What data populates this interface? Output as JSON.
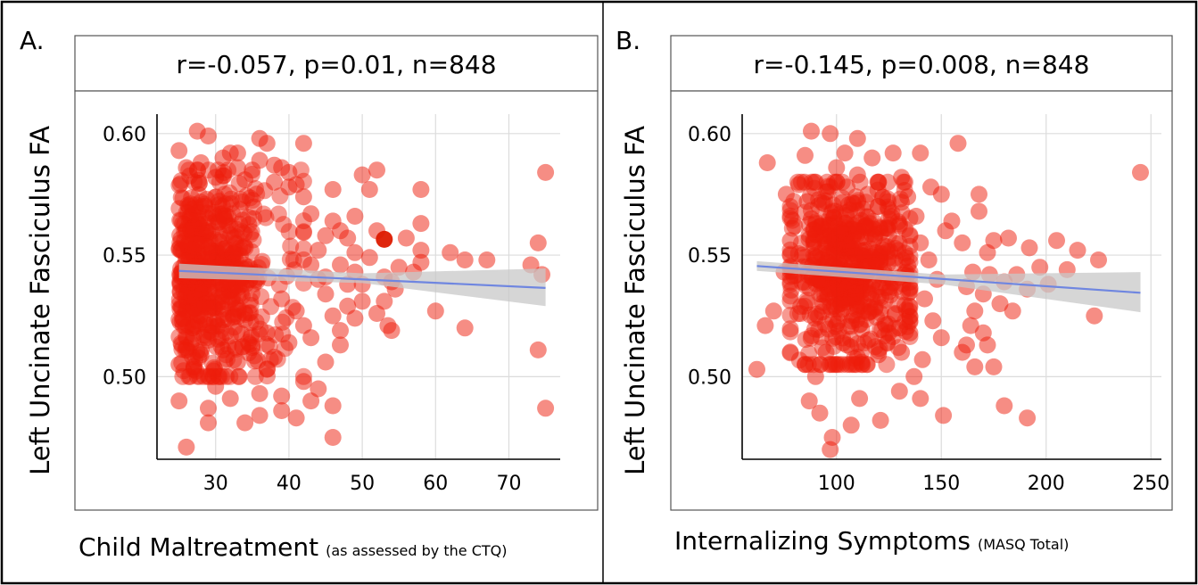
{
  "chart_data": [
    {
      "type": "scatter",
      "panel_label": "A.",
      "title": "r=-0.057, p=0.01, n=848",
      "xlabel": "Child Maltreatment",
      "xlabel_note": "(as assessed by the CTQ)",
      "ylabel": "Left Uncinate Fasciculus FA",
      "xlim": [
        22,
        77
      ],
      "ylim": [
        0.466,
        0.608
      ],
      "xticks": [
        30,
        40,
        50,
        60,
        70
      ],
      "xtick_labels": [
        "30",
        "40",
        "50",
        "60",
        "70"
      ],
      "yticks": [
        0.5,
        0.55,
        0.6
      ],
      "ytick_labels": [
        "0.50",
        "0.55",
        "0.60"
      ],
      "grid": true,
      "point_color": "#ee1c0a",
      "highlight_color": "#dd1a00",
      "fit_color": "#6f86e0",
      "band_color": "#c8c8c8",
      "fit": {
        "x": [
          25,
          75
        ],
        "y": [
          0.5435,
          0.5365
        ]
      },
      "band": {
        "x": [
          25,
          50,
          75
        ],
        "upper": [
          0.5465,
          0.5425,
          0.5445
        ],
        "lower": [
          0.5405,
          0.5385,
          0.529
        ]
      },
      "highlight_points": [
        [
          53,
          0.5565
        ]
      ],
      "points": [
        [
          27.5,
          0.601
        ],
        [
          29,
          0.599
        ],
        [
          25,
          0.593
        ],
        [
          32,
          0.592
        ],
        [
          33,
          0.592
        ],
        [
          36,
          0.598
        ],
        [
          37,
          0.596
        ],
        [
          42,
          0.596
        ],
        [
          35,
          0.585
        ],
        [
          39,
          0.586
        ],
        [
          46,
          0.577
        ],
        [
          50,
          0.583
        ],
        [
          52,
          0.585
        ],
        [
          51,
          0.577
        ],
        [
          58,
          0.577
        ],
        [
          75,
          0.584
        ],
        [
          47,
          0.56
        ],
        [
          48,
          0.557
        ],
        [
          49,
          0.566
        ],
        [
          52,
          0.56
        ],
        [
          56,
          0.557
        ],
        [
          58,
          0.563
        ],
        [
          58,
          0.552
        ],
        [
          62,
          0.551
        ],
        [
          64,
          0.548
        ],
        [
          67,
          0.548
        ],
        [
          73,
          0.546
        ],
        [
          74,
          0.555
        ],
        [
          74.5,
          0.542
        ],
        [
          58,
          0.547
        ],
        [
          55,
          0.545
        ],
        [
          57,
          0.543
        ],
        [
          53,
          0.541
        ],
        [
          54,
          0.539
        ],
        [
          54.5,
          0.536
        ],
        [
          53,
          0.531
        ],
        [
          52,
          0.526
        ],
        [
          53.5,
          0.521
        ],
        [
          54,
          0.519
        ],
        [
          60,
          0.527
        ],
        [
          64,
          0.52
        ],
        [
          74,
          0.511
        ],
        [
          75,
          0.487
        ],
        [
          46,
          0.475
        ],
        [
          41,
          0.483
        ],
        [
          43,
          0.49
        ],
        [
          39,
          0.486
        ],
        [
          36,
          0.484
        ],
        [
          34,
          0.481
        ],
        [
          32,
          0.491
        ],
        [
          29,
          0.487
        ],
        [
          29,
          0.481
        ],
        [
          26,
          0.471
        ],
        [
          25,
          0.49
        ],
        [
          30,
          0.496
        ],
        [
          36,
          0.493
        ],
        [
          39,
          0.492
        ],
        [
          44,
          0.495
        ],
        [
          46,
          0.488
        ],
        [
          42,
          0.498
        ],
        [
          45,
          0.506
        ],
        [
          37,
          0.503
        ],
        [
          38,
          0.508
        ],
        [
          43,
          0.516
        ],
        [
          47,
          0.519
        ],
        [
          49,
          0.524
        ],
        [
          50,
          0.531
        ],
        [
          48,
          0.538
        ],
        [
          46,
          0.525
        ],
        [
          45,
          0.534
        ],
        [
          44,
          0.54
        ],
        [
          43,
          0.546
        ],
        [
          44,
          0.552
        ],
        [
          45,
          0.558
        ],
        [
          46,
          0.564
        ],
        [
          43,
          0.567
        ],
        [
          42,
          0.574
        ],
        [
          41,
          0.579
        ],
        [
          40,
          0.584
        ],
        [
          38,
          0.58
        ],
        [
          45,
          0.541
        ],
        [
          47,
          0.546
        ],
        [
          49,
          0.543
        ],
        [
          50,
          0.538
        ],
        [
          51,
          0.549
        ],
        [
          49,
          0.551
        ],
        [
          48,
          0.529
        ],
        [
          47,
          0.513
        ],
        [
          25,
          0.505
        ],
        [
          26,
          0.512
        ],
        [
          27,
          0.503
        ],
        [
          28,
          0.509
        ],
        [
          29,
          0.515
        ],
        [
          31,
          0.511
        ],
        [
          33,
          0.506
        ],
        [
          35,
          0.512
        ],
        [
          37,
          0.518
        ],
        [
          40,
          0.514
        ],
        [
          42,
          0.521
        ],
        [
          41,
          0.527
        ],
        [
          39,
          0.532
        ],
        [
          26,
          0.586
        ],
        [
          28,
          0.588
        ],
        [
          30,
          0.582
        ],
        [
          31,
          0.59
        ],
        [
          33,
          0.586
        ],
        [
          34,
          0.581
        ],
        [
          36,
          0.589
        ],
        [
          38,
          0.587
        ],
        [
          40,
          0.578
        ]
      ],
      "dense_region": {
        "x": [
          25,
          42
        ],
        "y": [
          0.5,
          0.585
        ]
      }
    },
    {
      "type": "scatter",
      "panel_label": "B.",
      "title": "r=-0.145, p=0.008, n=848",
      "xlabel": "Internalizing Symptoms",
      "xlabel_note": "(MASQ Total)",
      "ylabel": "Left Uncinate Fasciculus FA",
      "xlim": [
        55,
        255
      ],
      "ylim": [
        0.466,
        0.608
      ],
      "xticks": [
        100,
        150,
        200,
        250
      ],
      "xtick_labels": [
        "100",
        "150",
        "200",
        "250"
      ],
      "yticks": [
        0.5,
        0.55,
        0.6
      ],
      "ytick_labels": [
        "0.50",
        "0.55",
        "0.60"
      ],
      "grid": true,
      "point_color": "#ee1c0a",
      "highlight_color": "#dd1a00",
      "fit_color": "#6f86e0",
      "band_color": "#c8c8c8",
      "fit": {
        "x": [
          62,
          245
        ],
        "y": [
          0.5455,
          0.5345
        ]
      },
      "band": {
        "x": [
          62,
          150,
          245
        ],
        "upper": [
          0.5475,
          0.542,
          0.543
        ],
        "lower": [
          0.5435,
          0.538,
          0.5265
        ]
      },
      "highlight_points": [],
      "points": [
        [
          88,
          0.601
        ],
        [
          97,
          0.6
        ],
        [
          110,
          0.598
        ],
        [
          158,
          0.596
        ],
        [
          67,
          0.588
        ],
        [
          85,
          0.591
        ],
        [
          104,
          0.592
        ],
        [
          117,
          0.59
        ],
        [
          127,
          0.592
        ],
        [
          131,
          0.582
        ],
        [
          140,
          0.592
        ],
        [
          150,
          0.575
        ],
        [
          145,
          0.578
        ],
        [
          168,
          0.575
        ],
        [
          168,
          0.568
        ],
        [
          245,
          0.584
        ],
        [
          152,
          0.56
        ],
        [
          155,
          0.564
        ],
        [
          160,
          0.555
        ],
        [
          172,
          0.551
        ],
        [
          175,
          0.556
        ],
        [
          182,
          0.557
        ],
        [
          192,
          0.553
        ],
        [
          205,
          0.556
        ],
        [
          215,
          0.552
        ],
        [
          225,
          0.548
        ],
        [
          210,
          0.544
        ],
        [
          197,
          0.545
        ],
        [
          186,
          0.542
        ],
        [
          180,
          0.539
        ],
        [
          173,
          0.542
        ],
        [
          165,
          0.543
        ],
        [
          162,
          0.537
        ],
        [
          170,
          0.534
        ],
        [
          178,
          0.53
        ],
        [
          184,
          0.527
        ],
        [
          166,
          0.527
        ],
        [
          164,
          0.521
        ],
        [
          170,
          0.518
        ],
        [
          172,
          0.513
        ],
        [
          166,
          0.504
        ],
        [
          175,
          0.504
        ],
        [
          160,
          0.51
        ],
        [
          162,
          0.513
        ],
        [
          223,
          0.525
        ],
        [
          191,
          0.536
        ],
        [
          201,
          0.538
        ],
        [
          180,
          0.488
        ],
        [
          191,
          0.483
        ],
        [
          151,
          0.484
        ],
        [
          140,
          0.491
        ],
        [
          130,
          0.494
        ],
        [
          121,
          0.482
        ],
        [
          111,
          0.491
        ],
        [
          107,
          0.48
        ],
        [
          98,
          0.475
        ],
        [
          97,
          0.47
        ],
        [
          92,
          0.485
        ],
        [
          87,
          0.49
        ],
        [
          62,
          0.503
        ],
        [
          66,
          0.521
        ],
        [
          70,
          0.527
        ],
        [
          75,
          0.543
        ],
        [
          78,
          0.556
        ],
        [
          80,
          0.562
        ],
        [
          76,
          0.575
        ],
        [
          82,
          0.579
        ],
        [
          140,
          0.555
        ],
        [
          144,
          0.548
        ],
        [
          148,
          0.54
        ],
        [
          142,
          0.532
        ],
        [
          146,
          0.523
        ],
        [
          150,
          0.516
        ],
        [
          141,
          0.507
        ],
        [
          137,
          0.5
        ],
        [
          131,
          0.51
        ],
        [
          135,
          0.518
        ],
        [
          128,
          0.526
        ],
        [
          125,
          0.535
        ],
        [
          133,
          0.543
        ],
        [
          138,
          0.566
        ],
        [
          134,
          0.574
        ],
        [
          120,
          0.58
        ],
        [
          85,
          0.505
        ],
        [
          90,
          0.5
        ],
        [
          95,
          0.51
        ],
        [
          100,
          0.505
        ],
        [
          105,
          0.513
        ],
        [
          110,
          0.508
        ],
        [
          115,
          0.515
        ],
        [
          120,
          0.509
        ],
        [
          125,
          0.518
        ],
        [
          130,
          0.52
        ],
        [
          86,
          0.572
        ],
        [
          90,
          0.58
        ],
        [
          95,
          0.576
        ],
        [
          100,
          0.586
        ],
        [
          105,
          0.578
        ],
        [
          110,
          0.583
        ],
        [
          115,
          0.575
        ],
        [
          120,
          0.57
        ],
        [
          125,
          0.565
        ],
        [
          130,
          0.562
        ],
        [
          88,
          0.565
        ]
      ],
      "dense_region": {
        "x": [
          78,
          135
        ],
        "y": [
          0.505,
          0.58
        ]
      }
    }
  ]
}
